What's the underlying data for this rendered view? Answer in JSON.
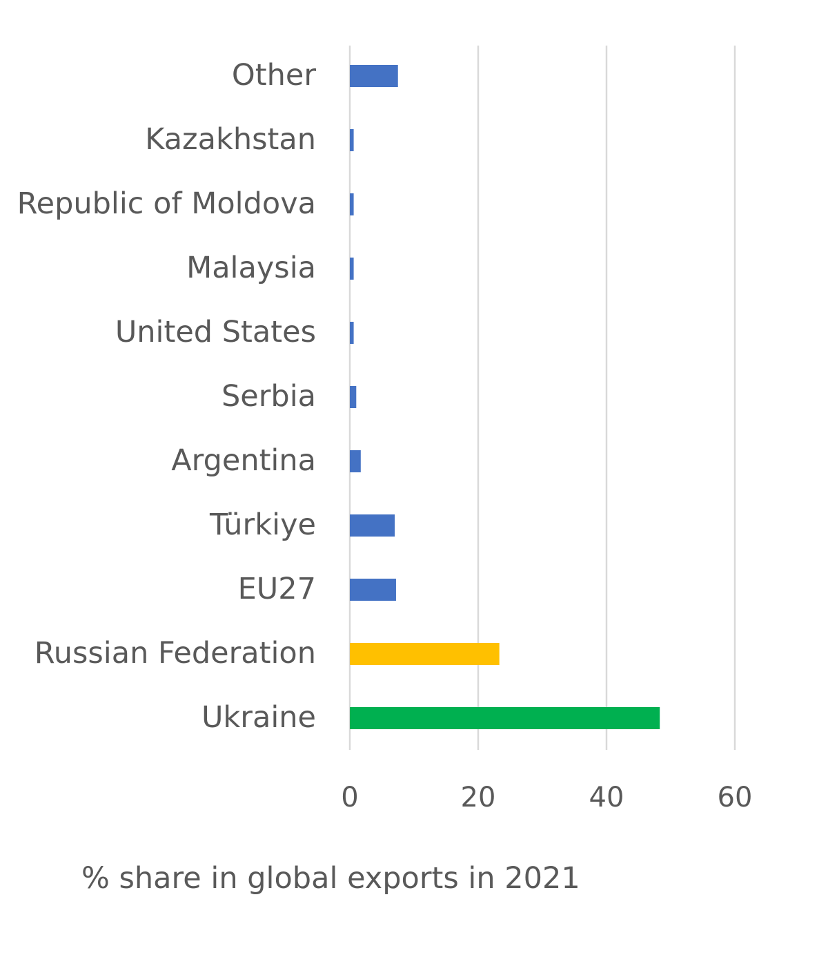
{
  "chart_data": {
    "type": "bar",
    "orientation": "horizontal",
    "categories": [
      "Other",
      "Kazakhstan",
      "Republic of Moldova",
      "Malaysia",
      "United States",
      "Serbia",
      "Argentina",
      "Türkiye",
      "EU27",
      "Russian Federation",
      "Ukraine"
    ],
    "values": [
      7.5,
      0.6,
      0.6,
      0.6,
      0.6,
      1.0,
      1.7,
      7.0,
      7.2,
      23.3,
      48.3
    ],
    "bar_colors": [
      "#4472C4",
      "#4472C4",
      "#4472C4",
      "#4472C4",
      "#4472C4",
      "#4472C4",
      "#4472C4",
      "#4472C4",
      "#4472C4",
      "#FFC000",
      "#00B050"
    ],
    "xlabel": "% share in global exports in 2021",
    "ylabel": "",
    "title": "",
    "xlim": [
      0,
      60
    ],
    "xticks": [
      0,
      20,
      40,
      60
    ],
    "grid": "vertical",
    "legend": "none"
  }
}
